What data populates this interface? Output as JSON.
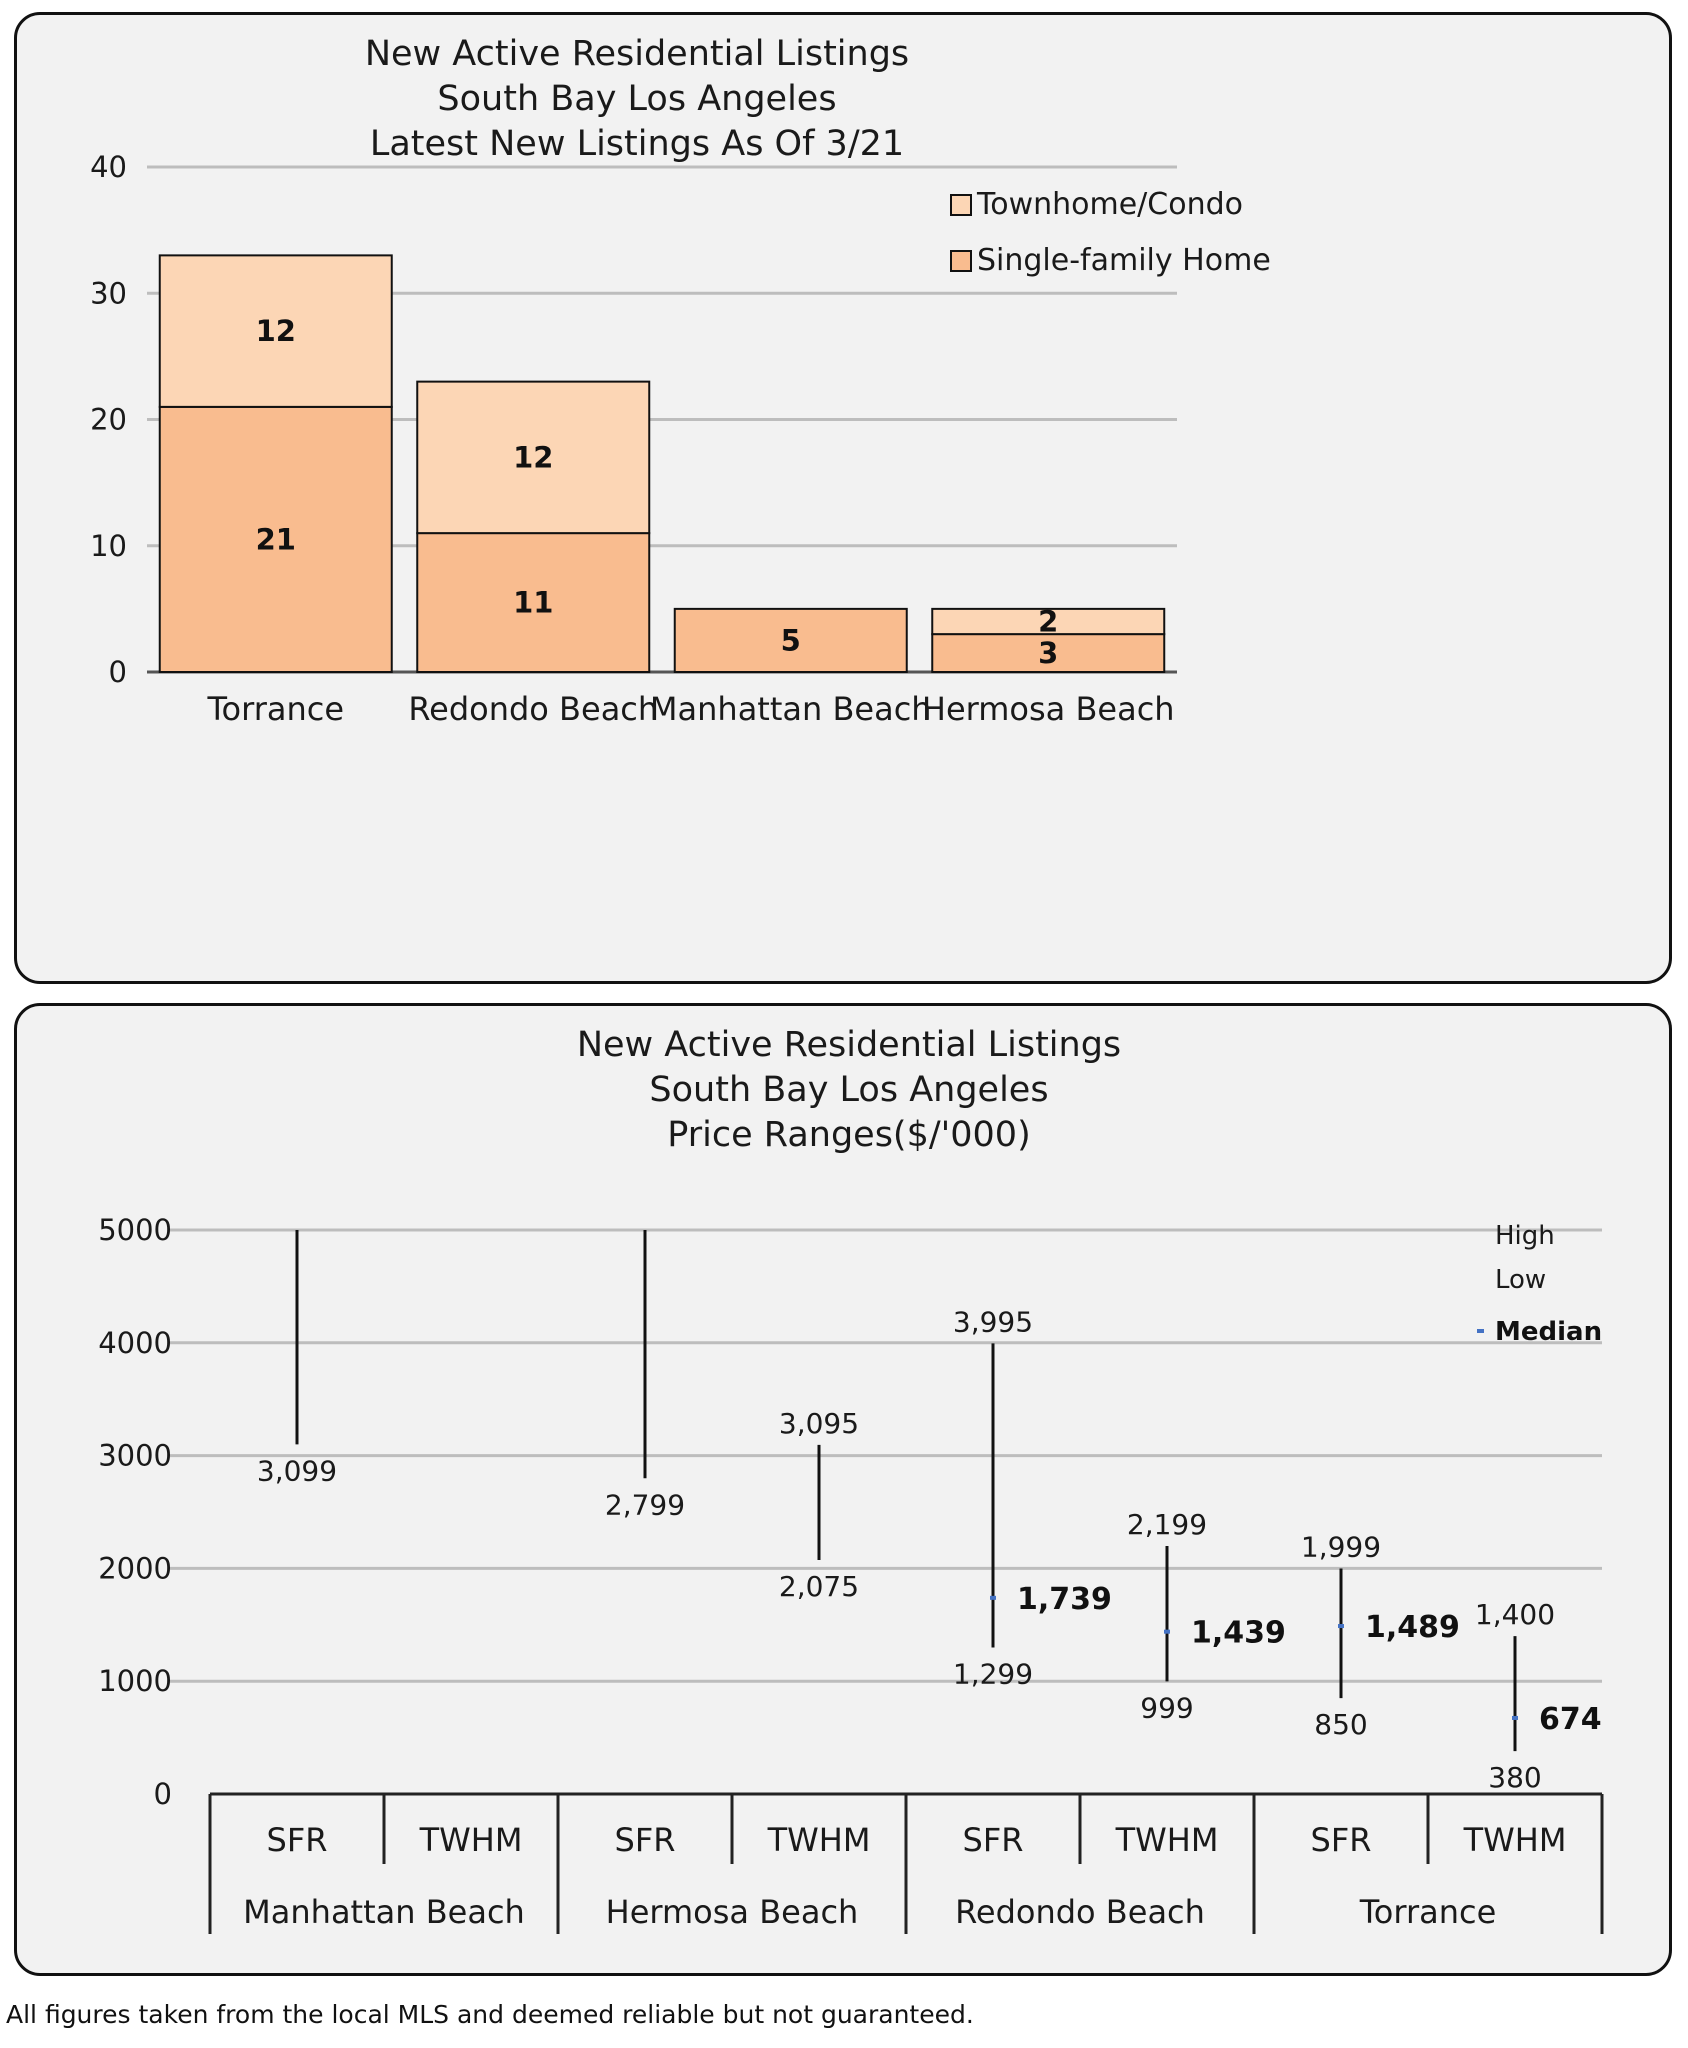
{
  "chart_data": [
    {
      "type": "bar",
      "stacked": true,
      "title_lines": [
        "New Active Residential Listings",
        "South Bay Los Angeles",
        "Latest New Listings As Of 3/21"
      ],
      "categories": [
        "Torrance",
        "Redondo Beach",
        "Manhattan Beach",
        "Hermosa Beach"
      ],
      "series": [
        {
          "name": "Single-family Home",
          "values": [
            21,
            11,
            5,
            3
          ],
          "color": "#f9bc8f"
        },
        {
          "name": "Townhome/Condo",
          "values": [
            12,
            12,
            0,
            2
          ],
          "color": "#fcd6b5"
        }
      ],
      "ylim": [
        0,
        40
      ],
      "yticks": [
        0,
        10,
        20,
        30,
        40
      ],
      "legend_placement": "top-right",
      "grid": true
    },
    {
      "type": "high-low",
      "title_lines": [
        "New Active Residential Listings",
        "South Bay Los Angeles",
        "Price Ranges($/'000)"
      ],
      "groups": [
        "Manhattan Beach",
        "Hermosa Beach",
        "Redondo Beach",
        "Torrance"
      ],
      "subcategories": [
        "SFR",
        "TWHM",
        "SFR",
        "TWHM",
        "SFR",
        "TWHM",
        "SFR",
        "TWHM"
      ],
      "points": [
        {
          "high": 5000,
          "low": 3099,
          "median": null,
          "high_label": "",
          "low_label": "3,099",
          "median_label": ""
        },
        {
          "high": null,
          "low": null,
          "median": null,
          "high_label": "",
          "low_label": "",
          "median_label": ""
        },
        {
          "high": 5000,
          "low": 2799,
          "median": null,
          "high_label": "",
          "low_label": "2,799",
          "median_label": ""
        },
        {
          "high": 3095,
          "low": 2075,
          "median": null,
          "high_label": "3,095",
          "low_label": "2,075",
          "median_label": ""
        },
        {
          "high": 3995,
          "low": 1299,
          "median": 1739,
          "high_label": "3,995",
          "low_label": "1,299",
          "median_label": "1,739"
        },
        {
          "high": 2199,
          "low": 999,
          "median": 1439,
          "high_label": "2,199",
          "low_label": "999",
          "median_label": "1,439"
        },
        {
          "high": 1999,
          "low": 850,
          "median": 1489,
          "high_label": "1,999",
          "low_label": "850",
          "median_label": "1,489"
        },
        {
          "high": 1400,
          "low": 380,
          "median": 674,
          "high_label": "1,400",
          "low_label": "380",
          "median_label": "674"
        }
      ],
      "ylim": [
        0,
        5000
      ],
      "yticks": [
        0,
        1000,
        2000,
        3000,
        4000,
        5000
      ],
      "legend": {
        "high": "High",
        "low": "Low",
        "median": "Median"
      },
      "legend_placement": "top-right",
      "grid": true,
      "median_color": "#4472c4"
    }
  ],
  "footnote": "All figures taken from the local MLS and deemed reliable but not guaranteed."
}
